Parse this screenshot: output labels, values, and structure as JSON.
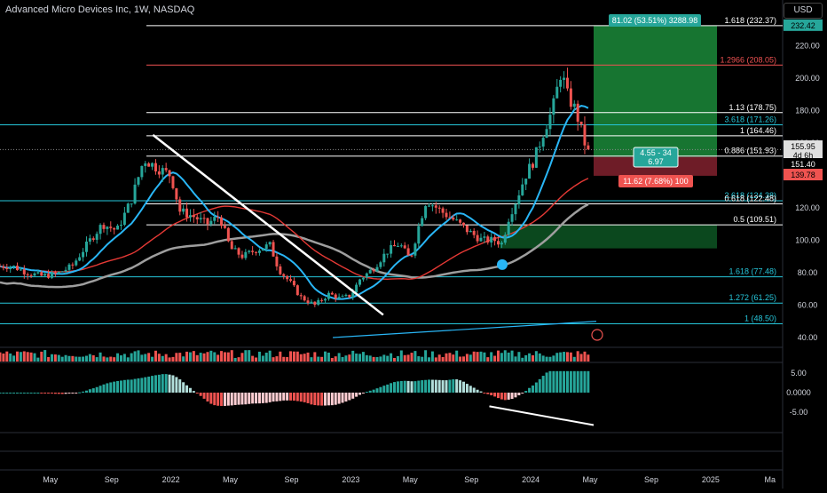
{
  "header": {
    "symbol_title": "Advanced Micro Devices Inc, 1W, NASDAQ",
    "currency": "USD"
  },
  "chart_data": [
    {
      "type": "candlestick",
      "title": "Advanced Micro Devices Inc, 1W, NASDAQ",
      "ylim": [
        40,
        240
      ],
      "y_ticks": [
        40,
        60,
        80,
        100,
        120,
        140,
        160,
        180,
        200,
        220
      ],
      "y_tick_labels": [
        "40.00",
        "60.00",
        "80.00",
        "100.00",
        "120.00",
        "140.00",
        "160.00",
        "180.00",
        "200.00",
        "220.00"
      ],
      "x_ticks": [
        {
          "t": 2021.33,
          "label": "May"
        },
        {
          "t": 2021.67,
          "label": "Sep"
        },
        {
          "t": 2022.0,
          "label": "2022"
        },
        {
          "t": 2022.33,
          "label": "May"
        },
        {
          "t": 2022.67,
          "label": "Sep"
        },
        {
          "t": 2023.0,
          "label": "2023"
        },
        {
          "t": 2023.33,
          "label": "May"
        },
        {
          "t": 2023.67,
          "label": "Sep"
        },
        {
          "t": 2024.0,
          "label": "2024"
        },
        {
          "t": 2024.33,
          "label": "May"
        },
        {
          "t": 2024.67,
          "label": "Sep"
        },
        {
          "t": 2025.0,
          "label": "2025"
        },
        {
          "t": 2025.33,
          "label": "Ma"
        }
      ],
      "price_path": [
        [
          2021.12,
          84
        ],
        [
          2021.2,
          80
        ],
        [
          2021.28,
          78
        ],
        [
          2021.36,
          79
        ],
        [
          2021.45,
          84
        ],
        [
          2021.55,
          100
        ],
        [
          2021.62,
          110
        ],
        [
          2021.7,
          106
        ],
        [
          2021.78,
          125
        ],
        [
          2021.85,
          150
        ],
        [
          2021.92,
          145
        ],
        [
          2022.0,
          140
        ],
        [
          2022.05,
          118
        ],
        [
          2022.12,
          115
        ],
        [
          2022.2,
          110
        ],
        [
          2022.27,
          115
        ],
        [
          2022.33,
          95
        ],
        [
          2022.4,
          90
        ],
        [
          2022.47,
          94
        ],
        [
          2022.55,
          97
        ],
        [
          2022.6,
          82
        ],
        [
          2022.67,
          73
        ],
        [
          2022.72,
          65
        ],
        [
          2022.8,
          60
        ],
        [
          2022.88,
          67
        ],
        [
          2022.94,
          64
        ],
        [
          2023.0,
          66
        ],
        [
          2023.05,
          76
        ],
        [
          2023.12,
          82
        ],
        [
          2023.2,
          93
        ],
        [
          2023.27,
          98
        ],
        [
          2023.33,
          88
        ],
        [
          2023.38,
          110
        ],
        [
          2023.42,
          125
        ],
        [
          2023.5,
          118
        ],
        [
          2023.58,
          112
        ],
        [
          2023.66,
          105
        ],
        [
          2023.73,
          100
        ],
        [
          2023.8,
          100
        ],
        [
          2023.84,
          98
        ],
        [
          2023.88,
          115
        ],
        [
          2023.92,
          125
        ],
        [
          2023.97,
          140
        ],
        [
          2024.02,
          150
        ],
        [
          2024.08,
          170
        ],
        [
          2024.12,
          180
        ],
        [
          2024.17,
          205
        ],
        [
          2024.2,
          190
        ],
        [
          2024.25,
          180
        ],
        [
          2024.3,
          160
        ],
        [
          2024.33,
          155.95
        ]
      ],
      "annotations": {
        "fib_levels": [
          {
            "value": 232.37,
            "label": "1.618 (232.37)",
            "color": "#ffffff"
          },
          {
            "value": 208.05,
            "label": "1.2966 (208.05)",
            "color": "#f05252"
          },
          {
            "value": 178.75,
            "label": "1.13 (178.75)",
            "color": "#ffffff"
          },
          {
            "value": 171.26,
            "label": "3.618 (171.26)",
            "color": "#26c6da"
          },
          {
            "value": 164.46,
            "label": "1 (164.46)",
            "color": "#ffffff"
          },
          {
            "value": 151.93,
            "label": "0.886 (151.93)",
            "color": "#ffffff"
          },
          {
            "value": 124.38,
            "label": "2.618 (124.38)",
            "color": "#26c6da"
          },
          {
            "value": 122.48,
            "label": "0.618 (122.48)",
            "color": "#ffffff"
          },
          {
            "value": 109.51,
            "label": "0.5 (109.51)",
            "color": "#ffffff"
          },
          {
            "value": 77.48,
            "label": "1.618 (77.48)",
            "color": "#26c6da"
          },
          {
            "value": 61.25,
            "label": "1.272 (61.25)",
            "color": "#26c6da"
          },
          {
            "value": 48.5,
            "label": "1 (48.50)",
            "color": "#26c6da"
          }
        ],
        "position_box": {
          "entry": 151.4,
          "target": 232.42,
          "stop": 139.78,
          "profit_label": "81.02 (53.51%) 3288.98",
          "loss_label": "11.62 (7.68%) 100",
          "center_label": "4.55 - 34",
          "center_label_2": "6.97"
        },
        "price_badges": [
          {
            "value": 232.42,
            "label": "232.42",
            "bg": "#26a69a",
            "fg": "#000000"
          },
          {
            "value": 155.95,
            "label": "155.95",
            "bg": "#e0e0e0",
            "fg": "#000000"
          },
          {
            "value": 155.95,
            "label": "4d 6h",
            "bg": "#e0e0e0",
            "fg": "#000000"
          },
          {
            "value": 151.4,
            "label": "151.40",
            "bg": "#000000",
            "fg": "#ffffff"
          },
          {
            "value": 139.78,
            "label": "139.78",
            "bg": "#ef5350",
            "fg": "#000000"
          }
        ]
      }
    },
    {
      "type": "bar",
      "title": "",
      "note": "volume histogram",
      "ylim": [
        0,
        1
      ]
    },
    {
      "type": "bar",
      "title": "",
      "note": "oscillator histogram",
      "ylim": [
        -7.5,
        6.5
      ],
      "y_ticks": [
        5,
        0,
        -5
      ],
      "y_tick_labels": [
        "5.00",
        "0.0000",
        "-5.00"
      ]
    }
  ],
  "colors": {
    "background": "#000000",
    "up": "#26a69a",
    "down": "#ef5350",
    "ma_fast": "#29b6f6",
    "ma_mid": "#e53935",
    "ma_slow": "#9e9e9e",
    "profit_zone": "#1b8a3a",
    "loss_zone": "#7a1f2b"
  }
}
